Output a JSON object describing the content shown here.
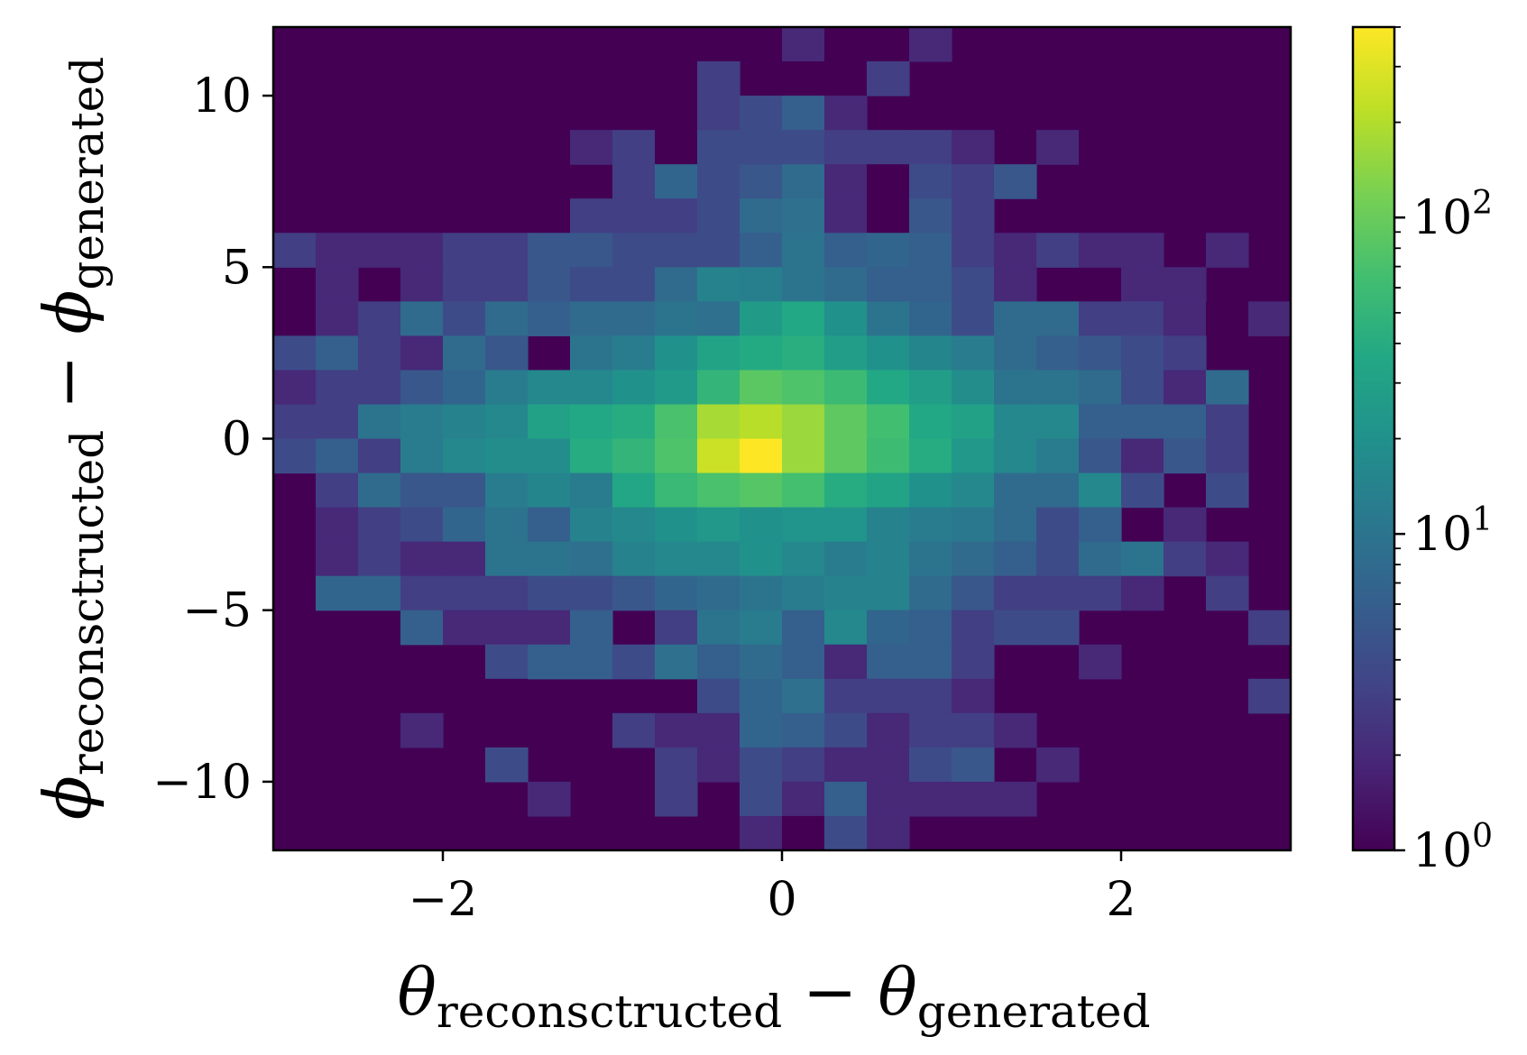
{
  "chart_data": {
    "type": "heatmap",
    "title": "",
    "xlabel": {
      "symbol": "θ",
      "sub1": "reconsctructed",
      "minus": " − ",
      "symbol2": "θ",
      "sub2": "generated"
    },
    "ylabel": {
      "symbol": "ϕ",
      "sub1": "reconsctructed",
      "minus": " − ",
      "symbol2": "ϕ",
      "sub2": "generated"
    },
    "xlim": [
      -3,
      3
    ],
    "ylim": [
      -12,
      12
    ],
    "x_ticks": [
      {
        "value": -2,
        "label": "−2"
      },
      {
        "value": 0,
        "label": "0"
      },
      {
        "value": 2,
        "label": "2"
      }
    ],
    "y_ticks": [
      {
        "value": 10,
        "label": "10"
      },
      {
        "value": 5,
        "label": "5"
      },
      {
        "value": 0,
        "label": "0"
      },
      {
        "value": -5,
        "label": "−5"
      },
      {
        "value": -10,
        "label": "−10"
      }
    ],
    "colorbar": {
      "scale": "log",
      "colormap": "viridis",
      "range": [
        1,
        400
      ],
      "ticks": [
        {
          "value": 1,
          "base": "10",
          "exp": "0"
        },
        {
          "value": 10,
          "base": "10",
          "exp": "1"
        },
        {
          "value": 100,
          "base": "10",
          "exp": "2"
        }
      ]
    },
    "bins": {
      "x_count": 24,
      "y_count": 24,
      "x_range": [
        -3,
        3
      ],
      "y_range": [
        -12,
        12
      ]
    },
    "counts_rows_top_to_bottom": [
      [
        0,
        0,
        0,
        0,
        0,
        0,
        0,
        0,
        1,
        1,
        1,
        1,
        2,
        1,
        0,
        2,
        0,
        1,
        0,
        0,
        0,
        0,
        0,
        0
      ],
      [
        0,
        0,
        0,
        0,
        0,
        0,
        1,
        0,
        0,
        0,
        3,
        0,
        1,
        1,
        3,
        0,
        0,
        0,
        1,
        1,
        1,
        0,
        0,
        0
      ],
      [
        0,
        0,
        0,
        0,
        0,
        0,
        0,
        0,
        0,
        0,
        3,
        4,
        6,
        2,
        0,
        0,
        0,
        0,
        0,
        0,
        0,
        0,
        0,
        0
      ],
      [
        0,
        0,
        0,
        0,
        0,
        0,
        1,
        2,
        3,
        1,
        4,
        4,
        4,
        3,
        3,
        3,
        2,
        0,
        2,
        1,
        0,
        0,
        0,
        0
      ],
      [
        0,
        0,
        0,
        0,
        0,
        0,
        0,
        0,
        3,
        7,
        4,
        5,
        8,
        2,
        1,
        4,
        3,
        5,
        0,
        0,
        0,
        0,
        0,
        0
      ],
      [
        0,
        0,
        0,
        0,
        1,
        0,
        1,
        3,
        3,
        3,
        4,
        8,
        9,
        2,
        1,
        5,
        3,
        0,
        0,
        0,
        0,
        1,
        0,
        0
      ],
      [
        3,
        2,
        2,
        2,
        3,
        3,
        5,
        5,
        4,
        4,
        4,
        6,
        10,
        6,
        7,
        6,
        3,
        2,
        3,
        2,
        2,
        0,
        2,
        0
      ],
      [
        0,
        2,
        0,
        2,
        3,
        3,
        5,
        4,
        4,
        8,
        14,
        13,
        10,
        8,
        6,
        6,
        4,
        2,
        0,
        0,
        2,
        2,
        0,
        0
      ],
      [
        0,
        2,
        3,
        8,
        4,
        8,
        6,
        8,
        8,
        10,
        9,
        26,
        36,
        20,
        10,
        7,
        4,
        8,
        8,
        3,
        3,
        2,
        1,
        2
      ],
      [
        4,
        6,
        3,
        2,
        8,
        5,
        0,
        10,
        12,
        20,
        32,
        38,
        42,
        28,
        20,
        15,
        12,
        8,
        6,
        5,
        4,
        3,
        0,
        0
      ],
      [
        2,
        3,
        3,
        5,
        7,
        12,
        16,
        16,
        20,
        25,
        50,
        86,
        75,
        58,
        36,
        28,
        18,
        10,
        10,
        8,
        4,
        2,
        8,
        0
      ],
      [
        3,
        3,
        10,
        12,
        14,
        16,
        30,
        36,
        40,
        70,
        180,
        210,
        160,
        90,
        64,
        36,
        30,
        16,
        16,
        6,
        6,
        6,
        3,
        0
      ],
      [
        4,
        6,
        3,
        12,
        16,
        18,
        18,
        40,
        50,
        75,
        250,
        400,
        160,
        90,
        60,
        40,
        24,
        16,
        12,
        5,
        2,
        5,
        3,
        0
      ],
      [
        0,
        3,
        8,
        5,
        5,
        12,
        15,
        12,
        35,
        55,
        70,
        80,
        66,
        40,
        32,
        20,
        16,
        8,
        8,
        16,
        4,
        0,
        4,
        0
      ],
      [
        0,
        2,
        3,
        4,
        7,
        10,
        6,
        14,
        16,
        20,
        24,
        20,
        22,
        22,
        14,
        12,
        11,
        8,
        4,
        6,
        0,
        2,
        0,
        0
      ],
      [
        0,
        2,
        3,
        2,
        2,
        10,
        10,
        9,
        14,
        16,
        16,
        20,
        16,
        12,
        14,
        10,
        8,
        6,
        4,
        8,
        10,
        3,
        2,
        0
      ],
      [
        0,
        7,
        7,
        3,
        3,
        3,
        4,
        4,
        5,
        7,
        8,
        10,
        12,
        14,
        14,
        8,
        5,
        3,
        3,
        3,
        2,
        0,
        3,
        0
      ],
      [
        0,
        0,
        0,
        6,
        2,
        2,
        2,
        6,
        0,
        3,
        10,
        12,
        6,
        16,
        7,
        6,
        3,
        4,
        4,
        0,
        0,
        0,
        0,
        3
      ],
      [
        0,
        0,
        0,
        0,
        0,
        4,
        6,
        6,
        4,
        9,
        6,
        8,
        6,
        2,
        6,
        6,
        3,
        0,
        0,
        2,
        0,
        0,
        0,
        0
      ],
      [
        0,
        0,
        0,
        0,
        0,
        1,
        0,
        0,
        0,
        0,
        4,
        7,
        9,
        3,
        3,
        3,
        2,
        0,
        0,
        0,
        0,
        0,
        0,
        3
      ],
      [
        0,
        0,
        0,
        2,
        0,
        0,
        0,
        0,
        3,
        2,
        2,
        7,
        6,
        4,
        2,
        3,
        3,
        2,
        0,
        0,
        0,
        0,
        0,
        0
      ],
      [
        0,
        0,
        0,
        0,
        0,
        4,
        0,
        0,
        0,
        3,
        2,
        4,
        3,
        2,
        2,
        4,
        5,
        0,
        2,
        0,
        0,
        0,
        0,
        0
      ],
      [
        0,
        0,
        0,
        0,
        0,
        0,
        2,
        0,
        0,
        3,
        0,
        4,
        2,
        6,
        2,
        2,
        2,
        2,
        0,
        0,
        0,
        0,
        0,
        0
      ],
      [
        0,
        0,
        0,
        0,
        0,
        0,
        0,
        0,
        0,
        0,
        1,
        2,
        1,
        4,
        2,
        0,
        0,
        0,
        0,
        0,
        0,
        0,
        0,
        0
      ]
    ]
  }
}
